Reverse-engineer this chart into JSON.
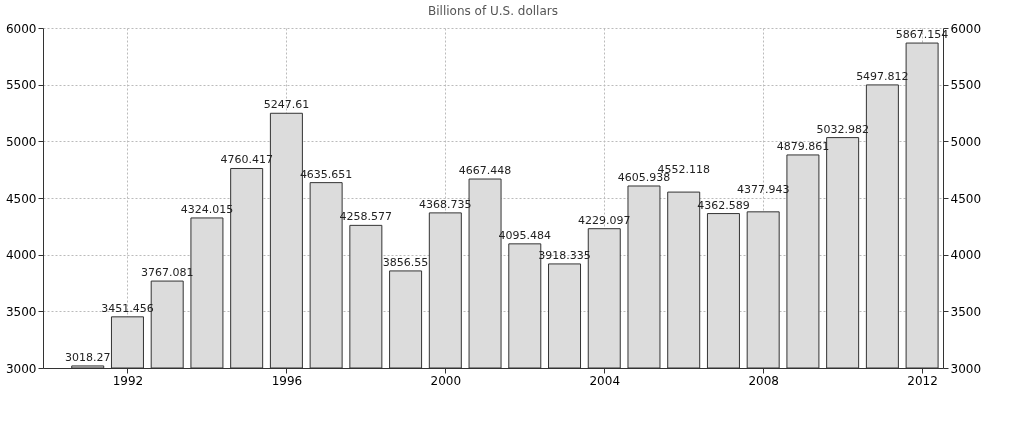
{
  "chart_data": {
    "type": "bar",
    "title": "Billions of U.S. dollars",
    "x": [
      1991,
      1992,
      1993,
      1994,
      1995,
      1996,
      1997,
      1998,
      1999,
      2000,
      2001,
      2002,
      2003,
      2004,
      2005,
      2006,
      2007,
      2008,
      2009,
      2010,
      2011,
      2012
    ],
    "values": [
      3018.27,
      3451.456,
      3767.081,
      4324.015,
      4760.417,
      5247.61,
      4635.651,
      4258.577,
      3856.55,
      4368.735,
      4667.448,
      4095.484,
      3918.335,
      4229.097,
      4605.938,
      4552.118,
      4362.589,
      4377.943,
      4879.861,
      5032.982,
      5497.812,
      5867.154
    ],
    "color": "#dcdcdc",
    "xlim": [
      1990,
      2012.4
    ],
    "xticks": [
      1992,
      1996,
      2000,
      2004,
      2008,
      2012
    ],
    "ylim": [
      3000,
      6000
    ],
    "yticks": [
      3000,
      3500,
      4000,
      4500,
      5000,
      5500,
      6000
    ],
    "y2lim": [
      3000,
      6000
    ],
    "y2ticks": [
      3000,
      3500,
      4000,
      4500,
      5000,
      5500,
      6000
    ],
    "grid": true,
    "data_labels": true
  }
}
